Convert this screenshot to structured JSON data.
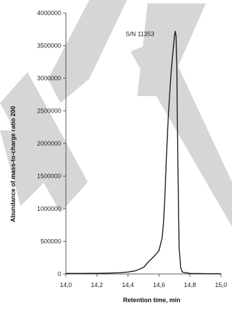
{
  "chart_data": {
    "type": "line",
    "xlabel": "Retention time, min",
    "ylabel": "Abundance of mass-to-charge ratio 200",
    "xlim": [
      14.0,
      15.0
    ],
    "ylim": [
      0,
      4000000
    ],
    "x_ticks": [
      "14,0",
      "14,2",
      "14,4",
      "14,6",
      "14,8",
      "15,0"
    ],
    "y_ticks": [
      "0",
      "500000",
      "1000000",
      "1500000",
      "2000000",
      "2500000",
      "3000000",
      "3500000",
      "4000000"
    ],
    "grid": false,
    "annotation": {
      "text": "S/N 11353",
      "x": 14.57,
      "y": 3650000
    },
    "series": [
      {
        "x": [
          14.0,
          14.1,
          14.2,
          14.3,
          14.35,
          14.4,
          14.45,
          14.5,
          14.53,
          14.56,
          14.58,
          14.6,
          14.62,
          14.63,
          14.64,
          14.65,
          14.66,
          14.67,
          14.68,
          14.69,
          14.7,
          14.705,
          14.71,
          14.715,
          14.72,
          14.73,
          14.74,
          14.75,
          14.8,
          14.9,
          15.0
        ],
        "y": [
          8000,
          9000,
          10000,
          15000,
          20000,
          30000,
          50000,
          100000,
          180000,
          250000,
          300000,
          360000,
          550000,
          800000,
          1300000,
          1900000,
          2400000,
          2800000,
          3150000,
          3400000,
          3650000,
          3720000,
          3650000,
          3200000,
          2000000,
          400000,
          100000,
          30000,
          8000,
          5000,
          4000
        ]
      }
    ],
    "watermark": "ma"
  }
}
